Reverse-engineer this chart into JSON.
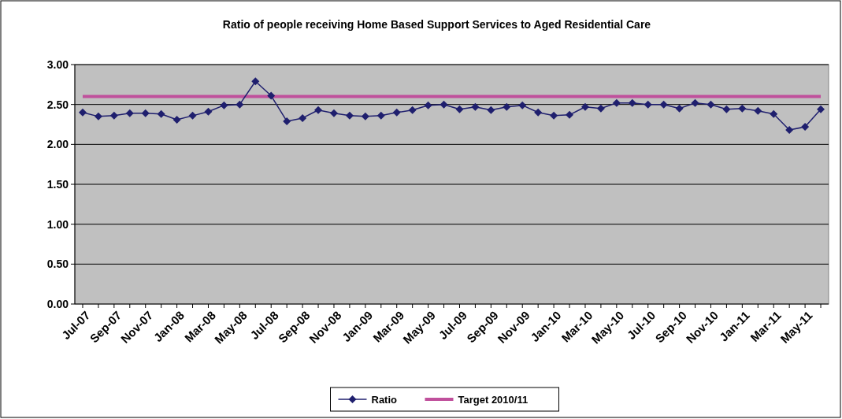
{
  "chart_data": {
    "type": "line",
    "title": "Ratio of people receiving Home Based Support Services to Aged Residential Care",
    "categories": [
      "Jul-07",
      null,
      "Sep-07",
      null,
      "Nov-07",
      null,
      "Jan-08",
      null,
      "Mar-08",
      null,
      "May-08",
      null,
      "Jul-08",
      null,
      "Sep-08",
      null,
      "Nov-08",
      null,
      "Jan-09",
      null,
      "Mar-09",
      null,
      "May-09",
      null,
      "Jul-09",
      null,
      "Sep-09",
      null,
      "Nov-09",
      null,
      "Jan-10",
      null,
      "Mar-10",
      null,
      "May-10",
      null,
      "Jul-10",
      null,
      "Sep-10",
      null,
      "Nov-10",
      null,
      "Jan-11",
      null,
      "Mar-11",
      null,
      "May-11",
      null
    ],
    "series": [
      {
        "name": "Ratio",
        "color": "#1f1f6e",
        "marker": "diamond",
        "values": [
          2.4,
          2.35,
          2.36,
          2.39,
          2.39,
          2.38,
          2.31,
          2.36,
          2.41,
          2.49,
          2.5,
          2.79,
          2.61,
          2.29,
          2.33,
          2.43,
          2.39,
          2.36,
          2.35,
          2.36,
          2.4,
          2.43,
          2.49,
          2.5,
          2.44,
          2.47,
          2.43,
          2.47,
          2.49,
          2.4,
          2.36,
          2.37,
          2.47,
          2.45,
          2.52,
          2.52,
          2.5,
          2.5,
          2.45,
          2.52,
          2.5,
          2.44,
          2.45,
          2.42,
          2.38,
          2.18,
          2.22,
          2.44
        ]
      },
      {
        "name": "Target 2010/11",
        "color": "#c0509c",
        "marker": "none",
        "values": [
          2.6,
          2.6,
          2.6,
          2.6,
          2.6,
          2.6,
          2.6,
          2.6,
          2.6,
          2.6,
          2.6,
          2.6,
          2.6,
          2.6,
          2.6,
          2.6,
          2.6,
          2.6,
          2.6,
          2.6,
          2.6,
          2.6,
          2.6,
          2.6,
          2.6,
          2.6,
          2.6,
          2.6,
          2.6,
          2.6,
          2.6,
          2.6,
          2.6,
          2.6,
          2.6,
          2.6,
          2.6,
          2.6,
          2.6,
          2.6,
          2.6,
          2.6,
          2.6,
          2.6,
          2.6,
          2.6,
          2.6,
          2.6
        ]
      }
    ],
    "ylim": [
      0,
      3
    ],
    "yticks": [
      {
        "value": 0,
        "label": "0.00"
      },
      {
        "value": 0.5,
        "label": "0.50"
      },
      {
        "value": 1,
        "label": "1.00"
      },
      {
        "value": 1.5,
        "label": "1.50"
      },
      {
        "value": 2,
        "label": "2.00"
      },
      {
        "value": 2.5,
        "label": "2.50"
      },
      {
        "value": 3,
        "label": "3.00"
      }
    ],
    "grid": "y",
    "legend": "bottom",
    "line_style": "solid"
  }
}
